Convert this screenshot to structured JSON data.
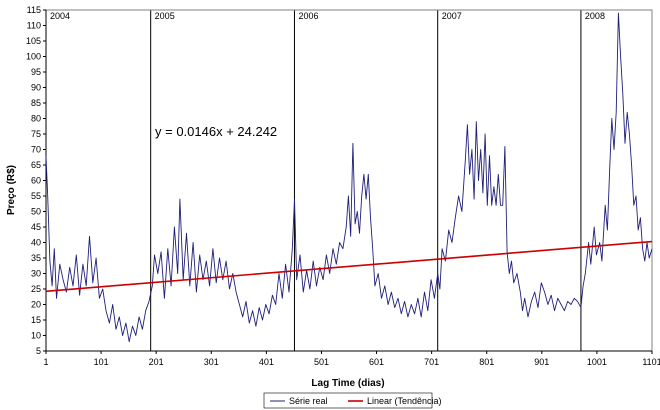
{
  "chart_data": {
    "type": "line",
    "xlabel": "Lag Time (dias)",
    "ylabel": "Preço (R$)",
    "xlim": [
      1,
      1101
    ],
    "ylim": [
      5,
      115
    ],
    "x_ticks": [
      1,
      101,
      201,
      301,
      401,
      501,
      601,
      701,
      801,
      901,
      1001,
      1101
    ],
    "x_tick_labels": [
      "1",
      "101",
      "201",
      "301",
      "401",
      "501",
      "601",
      "701",
      "801",
      "901",
      "1001",
      "1101"
    ],
    "y_ticks": [
      5,
      10,
      15,
      20,
      25,
      30,
      35,
      40,
      45,
      50,
      55,
      60,
      65,
      70,
      75,
      80,
      85,
      90,
      95,
      100,
      105,
      110,
      115
    ],
    "year_markers": [
      {
        "label": "2004",
        "x": 1
      },
      {
        "label": "2005",
        "x": 191
      },
      {
        "label": "2006",
        "x": 452
      },
      {
        "label": "2007",
        "x": 712
      },
      {
        "label": "2008",
        "x": 972
      }
    ],
    "annotation": "y = 0.0146x + 24.242",
    "grid": false,
    "legend_position": "bottom",
    "series": [
      {
        "name": "Série real",
        "color": "#1f1f7a",
        "points": [
          [
            1,
            68
          ],
          [
            4,
            55
          ],
          [
            8,
            34
          ],
          [
            12,
            26
          ],
          [
            16,
            38
          ],
          [
            20,
            22
          ],
          [
            26,
            33
          ],
          [
            32,
            28
          ],
          [
            38,
            24
          ],
          [
            44,
            32
          ],
          [
            50,
            26
          ],
          [
            56,
            36
          ],
          [
            62,
            23
          ],
          [
            68,
            33
          ],
          [
            74,
            26
          ],
          [
            80,
            42
          ],
          [
            86,
            27
          ],
          [
            92,
            35
          ],
          [
            98,
            22
          ],
          [
            104,
            25
          ],
          [
            110,
            18
          ],
          [
            116,
            14
          ],
          [
            122,
            20
          ],
          [
            128,
            12
          ],
          [
            134,
            16
          ],
          [
            140,
            10
          ],
          [
            146,
            14
          ],
          [
            152,
            8
          ],
          [
            158,
            13
          ],
          [
            164,
            10
          ],
          [
            170,
            16
          ],
          [
            176,
            12
          ],
          [
            182,
            18
          ],
          [
            188,
            21
          ],
          [
            194,
            26
          ],
          [
            198,
            36
          ],
          [
            204,
            30
          ],
          [
            210,
            37
          ],
          [
            216,
            22
          ],
          [
            222,
            38
          ],
          [
            228,
            26
          ],
          [
            234,
            45
          ],
          [
            240,
            30
          ],
          [
            244,
            54
          ],
          [
            250,
            28
          ],
          [
            256,
            43
          ],
          [
            262,
            26
          ],
          [
            268,
            40
          ],
          [
            274,
            24
          ],
          [
            280,
            36
          ],
          [
            286,
            28
          ],
          [
            292,
            34
          ],
          [
            298,
            26
          ],
          [
            304,
            38
          ],
          [
            310,
            27
          ],
          [
            316,
            35
          ],
          [
            322,
            28
          ],
          [
            328,
            34
          ],
          [
            334,
            25
          ],
          [
            340,
            30
          ],
          [
            346,
            24
          ],
          [
            352,
            20
          ],
          [
            358,
            16
          ],
          [
            364,
            21
          ],
          [
            370,
            14
          ],
          [
            376,
            18
          ],
          [
            382,
            13
          ],
          [
            388,
            19
          ],
          [
            394,
            15
          ],
          [
            400,
            20
          ],
          [
            406,
            17
          ],
          [
            412,
            23
          ],
          [
            418,
            20
          ],
          [
            424,
            30
          ],
          [
            430,
            22
          ],
          [
            436,
            33
          ],
          [
            442,
            24
          ],
          [
            448,
            38
          ],
          [
            452,
            54
          ],
          [
            456,
            28
          ],
          [
            462,
            36
          ],
          [
            468,
            24
          ],
          [
            474,
            31
          ],
          [
            480,
            25
          ],
          [
            486,
            34
          ],
          [
            492,
            26
          ],
          [
            498,
            32
          ],
          [
            504,
            28
          ],
          [
            510,
            36
          ],
          [
            516,
            30
          ],
          [
            522,
            38
          ],
          [
            528,
            33
          ],
          [
            534,
            40
          ],
          [
            540,
            38
          ],
          [
            546,
            45
          ],
          [
            550,
            55
          ],
          [
            554,
            42
          ],
          [
            558,
            72
          ],
          [
            562,
            46
          ],
          [
            566,
            50
          ],
          [
            570,
            43
          ],
          [
            574,
            55
          ],
          [
            578,
            62
          ],
          [
            582,
            54
          ],
          [
            586,
            62
          ],
          [
            590,
            48
          ],
          [
            594,
            38
          ],
          [
            598,
            26
          ],
          [
            604,
            30
          ],
          [
            610,
            22
          ],
          [
            616,
            26
          ],
          [
            622,
            20
          ],
          [
            628,
            24
          ],
          [
            634,
            19
          ],
          [
            640,
            22
          ],
          [
            646,
            17
          ],
          [
            652,
            21
          ],
          [
            658,
            16
          ],
          [
            664,
            20
          ],
          [
            670,
            17
          ],
          [
            676,
            22
          ],
          [
            682,
            16
          ],
          [
            688,
            24
          ],
          [
            694,
            18
          ],
          [
            700,
            28
          ],
          [
            706,
            22
          ],
          [
            712,
            30
          ],
          [
            716,
            25
          ],
          [
            720,
            38
          ],
          [
            726,
            34
          ],
          [
            732,
            44
          ],
          [
            738,
            40
          ],
          [
            744,
            48
          ],
          [
            750,
            55
          ],
          [
            756,
            50
          ],
          [
            762,
            66
          ],
          [
            766,
            78
          ],
          [
            770,
            62
          ],
          [
            774,
            70
          ],
          [
            778,
            54
          ],
          [
            782,
            79
          ],
          [
            786,
            60
          ],
          [
            790,
            70
          ],
          [
            794,
            56
          ],
          [
            798,
            75
          ],
          [
            802,
            52
          ],
          [
            806,
            68
          ],
          [
            810,
            52
          ],
          [
            814,
            58
          ],
          [
            818,
            52
          ],
          [
            822,
            62
          ],
          [
            826,
            52
          ],
          [
            830,
            52
          ],
          [
            834,
            71
          ],
          [
            838,
            37
          ],
          [
            842,
            30
          ],
          [
            846,
            34
          ],
          [
            850,
            27
          ],
          [
            856,
            30
          ],
          [
            862,
            24
          ],
          [
            866,
            18
          ],
          [
            870,
            22
          ],
          [
            876,
            16
          ],
          [
            882,
            21
          ],
          [
            888,
            24
          ],
          [
            894,
            19
          ],
          [
            900,
            27
          ],
          [
            906,
            24
          ],
          [
            912,
            20
          ],
          [
            918,
            23
          ],
          [
            924,
            18
          ],
          [
            930,
            22
          ],
          [
            936,
            20
          ],
          [
            942,
            18
          ],
          [
            948,
            21
          ],
          [
            954,
            20
          ],
          [
            960,
            22
          ],
          [
            966,
            21
          ],
          [
            972,
            19
          ],
          [
            976,
            26
          ],
          [
            980,
            30
          ],
          [
            986,
            40
          ],
          [
            990,
            33
          ],
          [
            996,
            45
          ],
          [
            1000,
            36
          ],
          [
            1006,
            40
          ],
          [
            1010,
            34
          ],
          [
            1016,
            52
          ],
          [
            1020,
            44
          ],
          [
            1024,
            63
          ],
          [
            1028,
            80
          ],
          [
            1032,
            70
          ],
          [
            1036,
            82
          ],
          [
            1040,
            114
          ],
          [
            1044,
            100
          ],
          [
            1048,
            88
          ],
          [
            1052,
            72
          ],
          [
            1056,
            82
          ],
          [
            1060,
            75
          ],
          [
            1064,
            65
          ],
          [
            1068,
            52
          ],
          [
            1072,
            55
          ],
          [
            1076,
            44
          ],
          [
            1080,
            48
          ],
          [
            1084,
            38
          ],
          [
            1088,
            34
          ],
          [
            1092,
            40
          ],
          [
            1096,
            35
          ],
          [
            1101,
            38
          ]
        ]
      },
      {
        "name": "Linear (Tendência)",
        "color": "#cc0000",
        "slope": 0.0146,
        "intercept": 24.242
      }
    ]
  }
}
